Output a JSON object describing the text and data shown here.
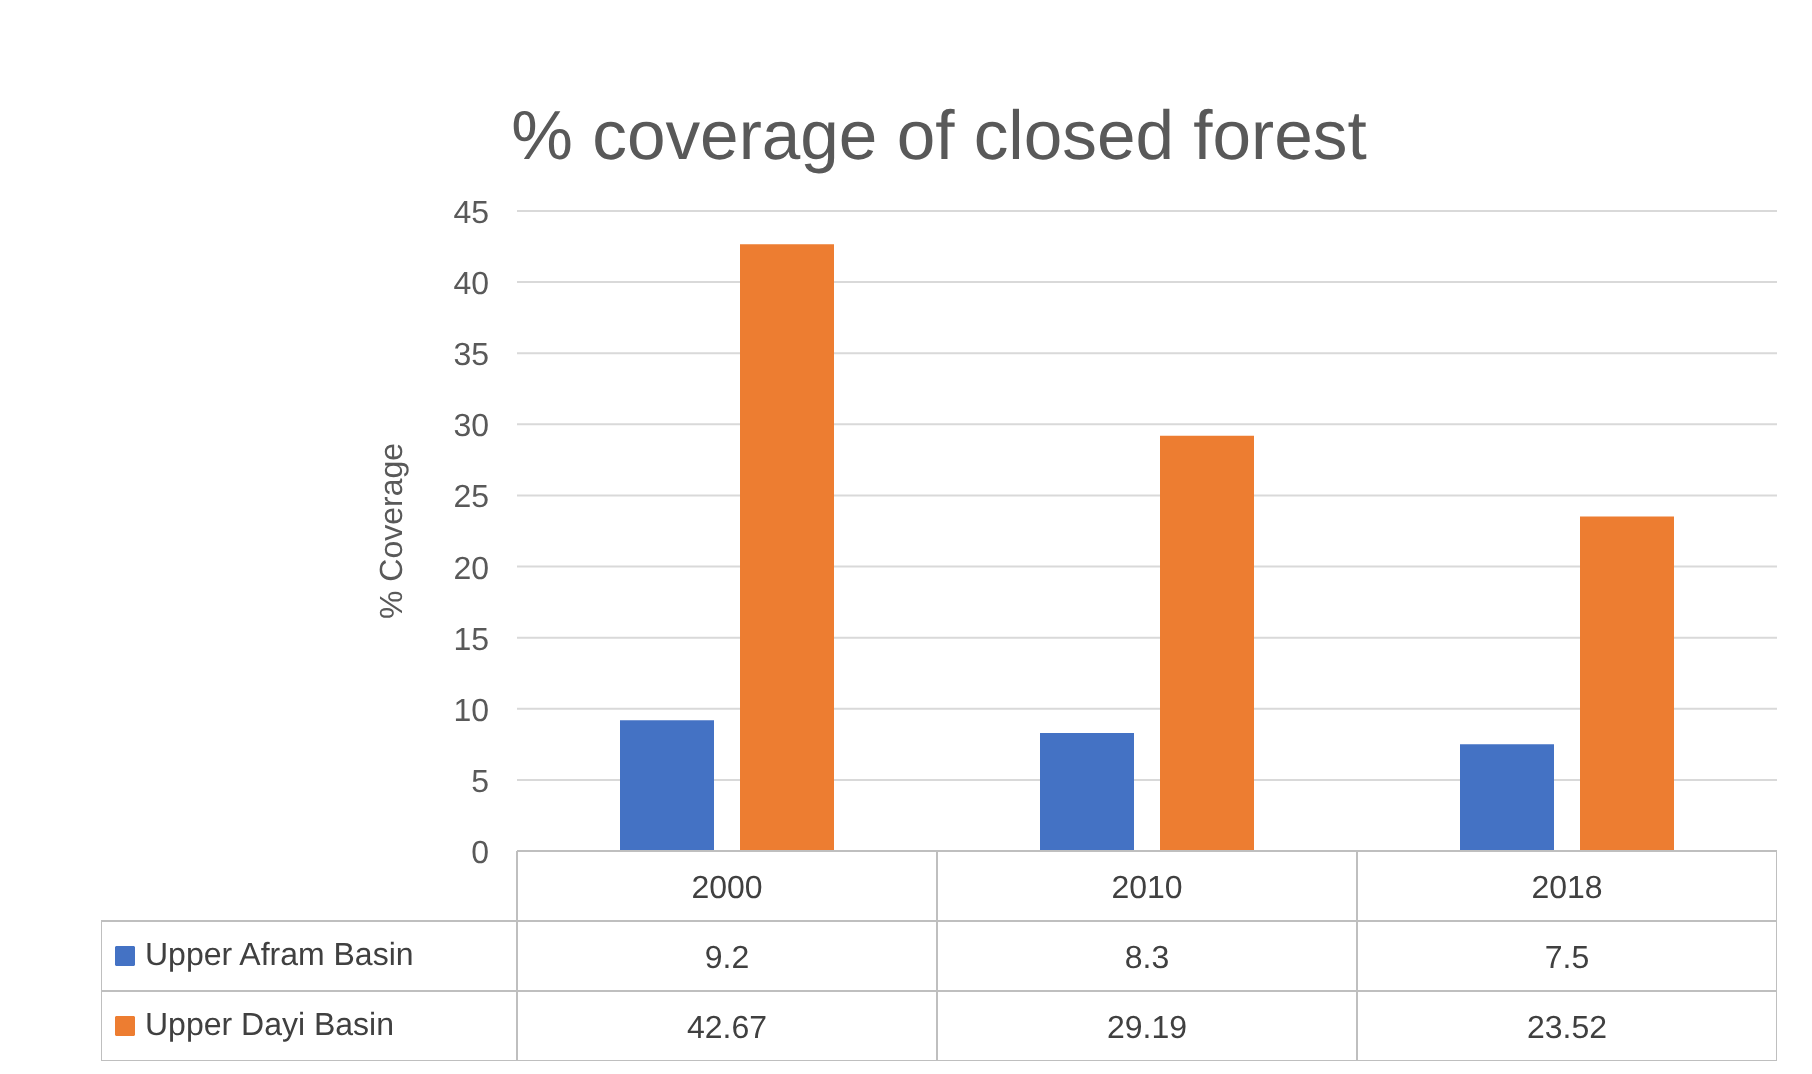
{
  "chart_data": {
    "type": "bar",
    "title": "% coverage of closed forest",
    "ylabel": "% Coverage",
    "categories": [
      "2000",
      "2010",
      "2018"
    ],
    "series": [
      {
        "name": "Upper Afram Basin",
        "color": "#4472c4",
        "values": [
          9.2,
          8.3,
          7.5
        ]
      },
      {
        "name": "Upper Dayi Basin",
        "color": "#ed7d31",
        "values": [
          42.67,
          29.19,
          23.52
        ]
      }
    ],
    "ylim": [
      0,
      45
    ],
    "yticks": [
      0,
      5,
      10,
      15,
      20,
      25,
      30,
      35,
      40,
      45
    ],
    "grid": "y",
    "legend": "bottom",
    "data_labels": true
  }
}
